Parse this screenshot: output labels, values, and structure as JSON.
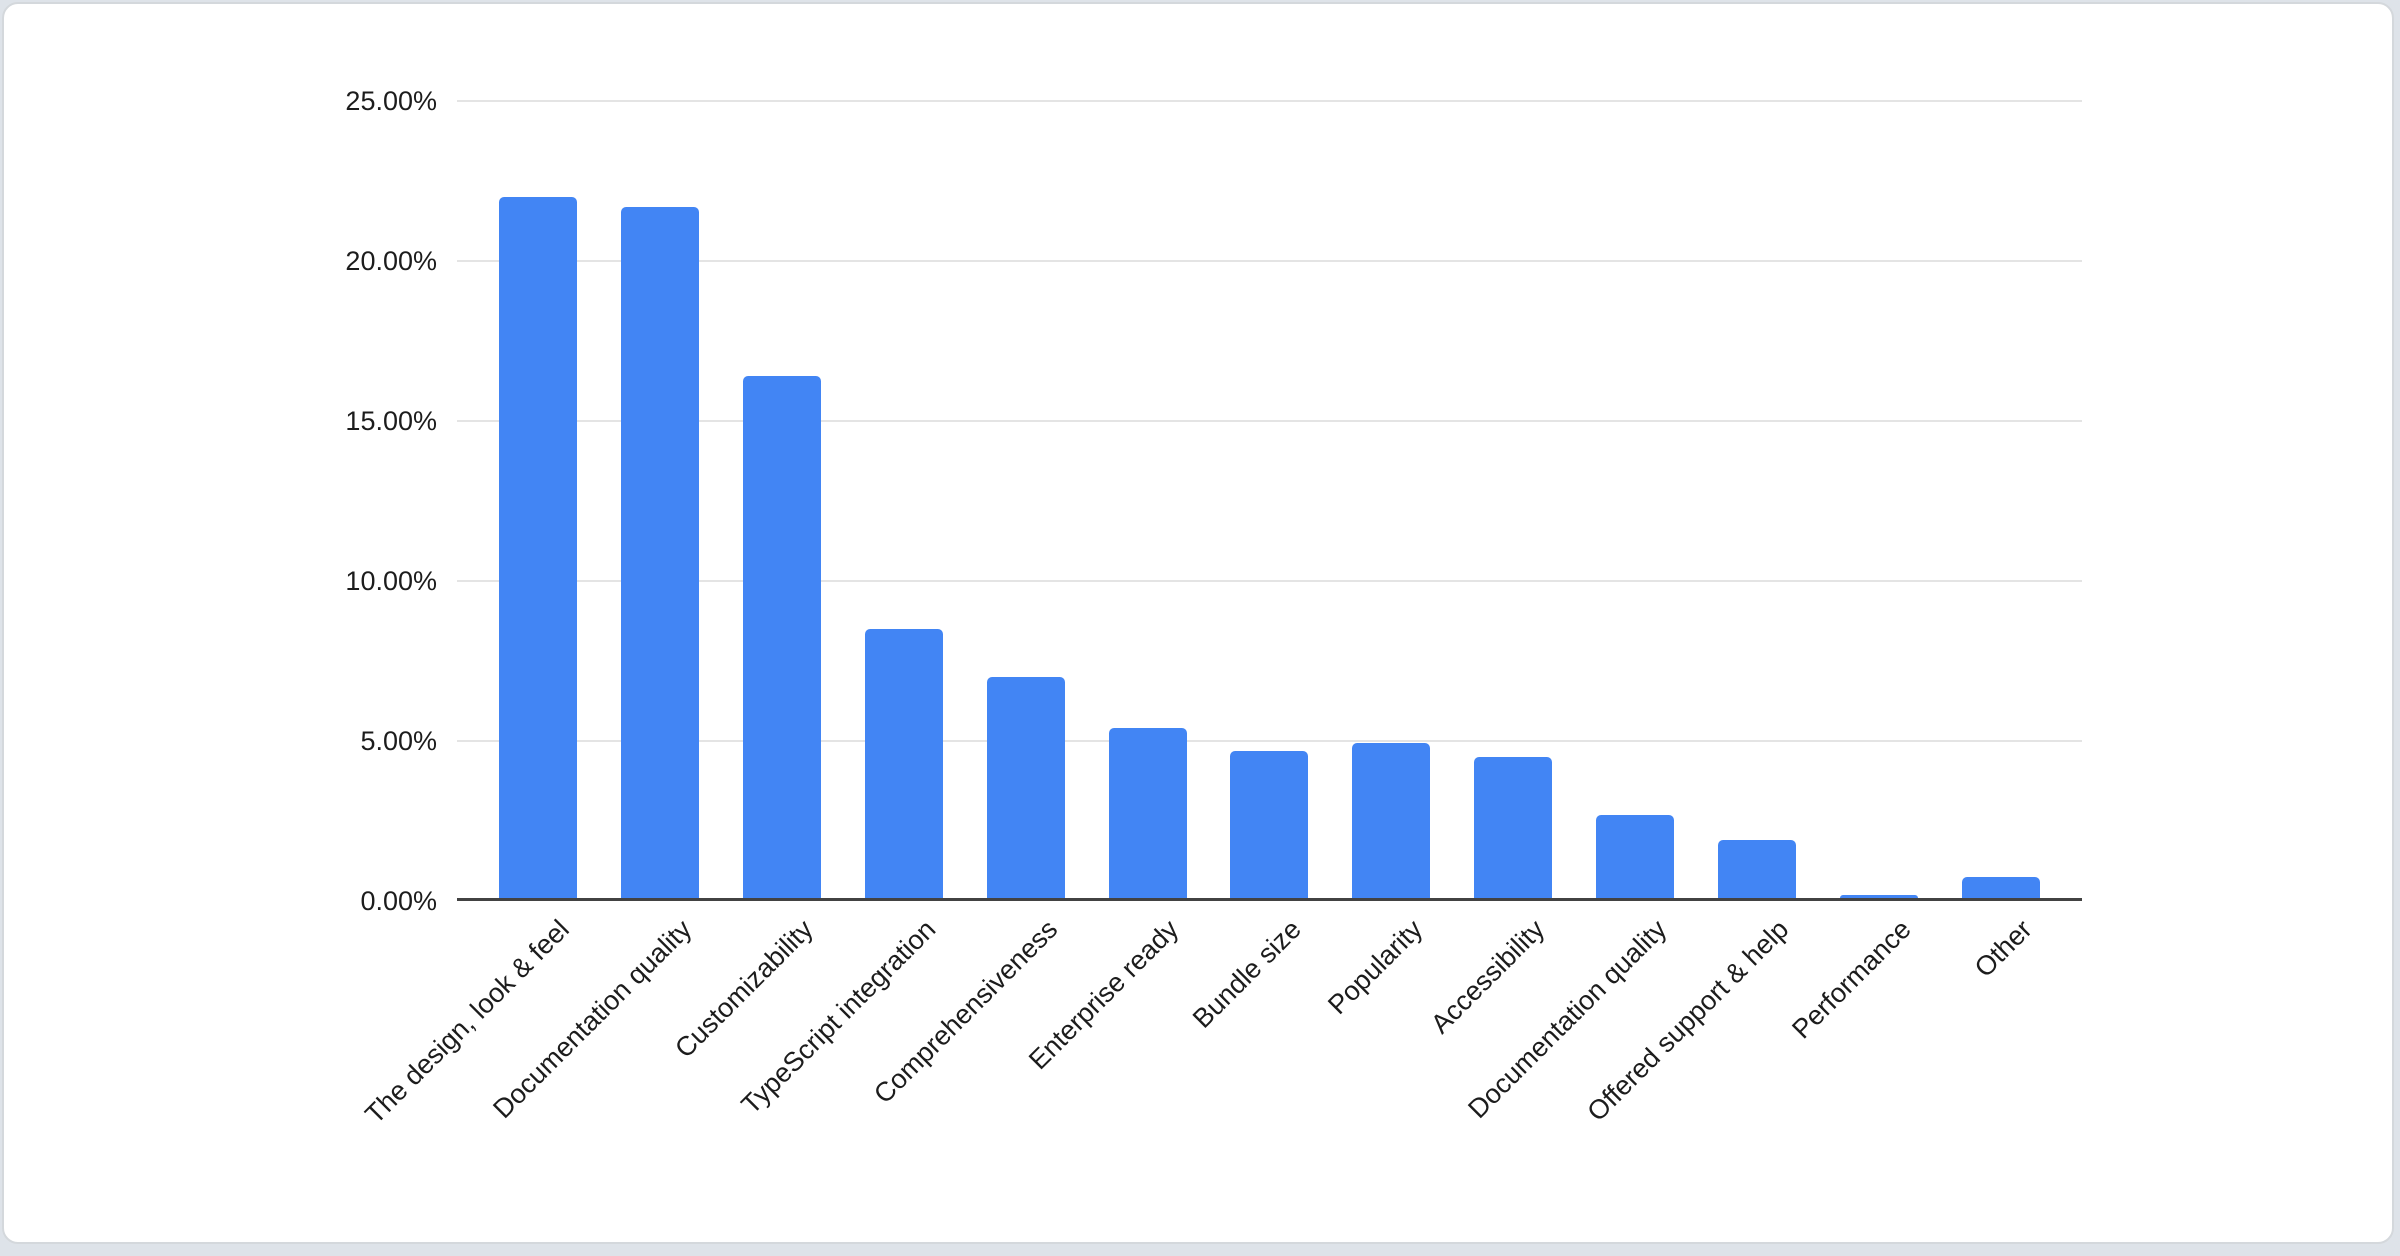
{
  "frame": {
    "page_background": "#dee3e9",
    "card_background": "#ffffff",
    "card_border": "#d4d8dc"
  },
  "chart_data": {
    "type": "bar",
    "title": "",
    "categories": [
      "The design, look & feel",
      "Documentation quality",
      "Customizability",
      "TypeScript integration",
      "Comprehensiveness",
      "Enterprise ready",
      "Bundle size",
      "Popularity",
      "Accessibility",
      "Documentation quality",
      "Offered support & help",
      "Performance",
      "Other"
    ],
    "values": [
      21.9,
      21.6,
      16.3,
      8.4,
      6.9,
      5.3,
      4.6,
      4.85,
      4.4,
      2.6,
      1.8,
      0.1,
      0.65
    ],
    "unit": "percent",
    "y_ticks": [
      "25.00%",
      "20.00%",
      "15.00%",
      "10.00%",
      "5.00%",
      "0.00%"
    ],
    "y_tick_values": [
      25,
      20,
      15,
      10,
      5,
      0
    ],
    "ylim": [
      0,
      25
    ],
    "x_label_rotation_deg": -45,
    "grid": true,
    "legend": "none",
    "colors": {
      "bar": "#4285f4",
      "gridline": "#e4e4e4",
      "axis_line": "#424242",
      "labels": "#1c1c1c"
    }
  }
}
